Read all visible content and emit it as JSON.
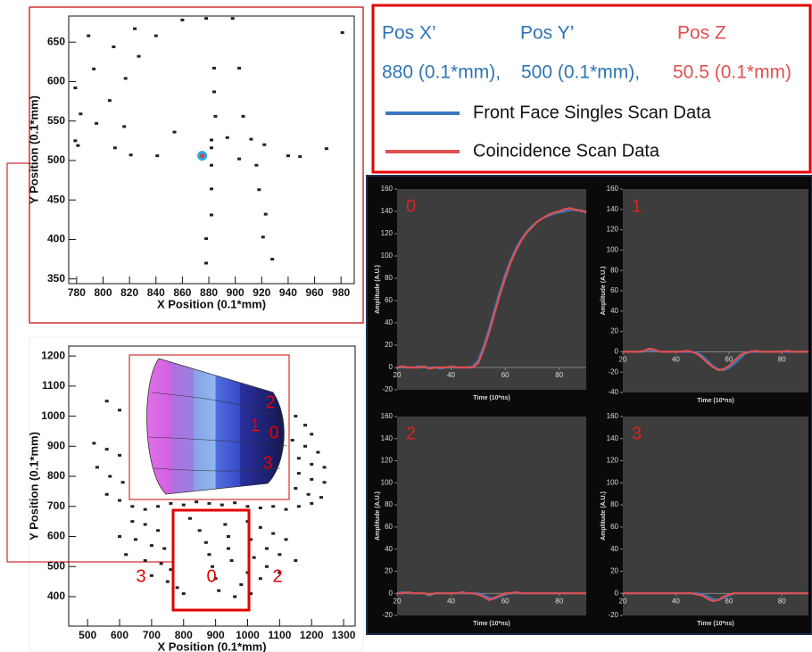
{
  "positions": [
    {
      "label": "Pos X’",
      "value": "880 (0.1*mm),",
      "color": "#2e74b5"
    },
    {
      "label": "Pos Y’",
      "value": "500 (0.1*mm),",
      "color": "#2e74b5"
    },
    {
      "label": "Pos Z",
      "value": "50.5 (0.1*mm)",
      "color": "#e05050"
    }
  ],
  "chart_data": [
    {
      "type": "scatter",
      "xlabel": "X Position (0.1*mm)",
      "ylabel": "Y Position (0.1*mm)",
      "xlim": [
        774,
        990
      ],
      "ylim": [
        344,
        683
      ],
      "xticks": [
        780,
        800,
        820,
        840,
        860,
        880,
        900,
        920,
        940,
        960,
        980
      ],
      "yticks": [
        350,
        400,
        450,
        500,
        550,
        600,
        650
      ],
      "series": [
        {
          "color": "#222222",
          "x": [
            789,
            824,
            840,
            860,
            878,
            898,
            981,
            808,
            827,
            793,
            817,
            779,
            884,
            903,
            805,
            884,
            783,
            795,
            816,
            885,
            906,
            854,
            779,
            809,
            841,
            882,
            894,
            912,
            922,
            781,
            882,
            821,
            882,
            903,
            916,
            940,
            969,
            949,
            882,
            918,
            882,
            923,
            878,
            921,
            878,
            928
          ],
          "y": [
            658,
            667,
            658,
            678,
            680,
            680,
            662,
            644,
            632,
            616,
            604,
            592,
            617,
            617,
            576,
            587,
            559,
            547,
            543,
            556,
            556,
            536,
            525,
            516,
            506,
            526,
            529,
            527,
            520,
            519,
            516,
            507,
            494,
            502,
            494,
            506,
            515,
            505,
            464,
            463,
            431,
            432,
            401,
            403,
            370,
            375
          ]
        },
        {
          "color": "#e03a3a",
          "ring": "#29a9e0",
          "x": [
            875
          ],
          "y": [
            506
          ]
        }
      ]
    },
    {
      "type": "scatter",
      "xlabel": "X Position (0.1*mm)",
      "ylabel": "Y Position (0.1*mm)",
      "xlim": [
        441,
        1336
      ],
      "ylim": [
        302,
        1233
      ],
      "xticks": [
        500,
        600,
        700,
        800,
        900,
        1000,
        1100,
        1200,
        1300
      ],
      "yticks": [
        400,
        500,
        600,
        700,
        800,
        900,
        1000,
        1100,
        1200
      ],
      "annotations": [
        {
          "text": "2",
          "color": "#e00000"
        },
        {
          "text": "1",
          "color": "#e00000"
        },
        {
          "text": "0",
          "color": "#e00000"
        },
        {
          "text": "3",
          "color": "#e00000"
        },
        {
          "text": "3",
          "color": "#e00000"
        },
        {
          "text": "0",
          "color": "#e00000"
        },
        {
          "text": "2",
          "color": "#e00000"
        }
      ],
      "series": [
        {
          "color": "#222222",
          "x": [
            560,
            600,
            520,
            560,
            600,
            530,
            570,
            610,
            560,
            600,
            640,
            680,
            720,
            760,
            800,
            840,
            880,
            920,
            960,
            1000,
            1040,
            1080,
            1120,
            1160,
            1200,
            1150,
            1180,
            1200,
            1140,
            1180,
            1220,
            1160,
            1200,
            1240,
            1160,
            1200,
            1240,
            1150,
            1190,
            1230,
            640,
            680,
            720,
            600,
            650,
            700,
            740,
            620,
            680,
            730,
            760,
            700,
            750,
            780,
            800,
            820,
            850,
            870,
            880,
            890,
            900,
            910,
            930,
            940,
            940,
            950,
            1000,
            1040,
            1080,
            1120,
            1010,
            1060,
            1100,
            1150,
            1020,
            1060,
            1100,
            1000,
            1040,
            980,
            960,
            1010
          ],
          "y": [
            1050,
            1020,
            910,
            890,
            870,
            830,
            800,
            780,
            740,
            720,
            700,
            690,
            700,
            710,
            705,
            715,
            710,
            705,
            712,
            700,
            695,
            700,
            690,
            700,
            710,
            1000,
            970,
            940,
            920,
            900,
            880,
            860,
            840,
            830,
            810,
            790,
            780,
            760,
            740,
            730,
            650,
            640,
            620,
            600,
            590,
            570,
            560,
            540,
            520,
            510,
            490,
            470,
            450,
            430,
            410,
            660,
            620,
            580,
            540,
            500,
            460,
            420,
            640,
            600,
            560,
            520,
            650,
            630,
            610,
            590,
            590,
            560,
            540,
            520,
            530,
            500,
            480,
            480,
            460,
            440,
            400,
            410
          ]
        }
      ]
    },
    {
      "type": "line",
      "label": "0",
      "label_color": "#e02020",
      "xlabel": "Time (10*ns)",
      "ylabel": "Amplitude (A.U.)",
      "xlim": [
        20,
        90
      ],
      "ylim": [
        -20,
        160
      ],
      "xticks": [
        20,
        40,
        60,
        80
      ],
      "yticks": [
        -20,
        0,
        20,
        40,
        60,
        80,
        100,
        120,
        140,
        160
      ],
      "x": [
        20,
        22,
        24,
        26,
        28,
        30,
        32,
        34,
        36,
        38,
        40,
        42,
        44,
        46,
        48,
        50,
        52,
        54,
        56,
        58,
        60,
        62,
        64,
        66,
        68,
        70,
        72,
        74,
        76,
        78,
        80,
        82,
        84,
        86,
        88,
        90
      ],
      "series": [
        {
          "name": "Front Face Singles Scan Data",
          "color": "#3a78c0",
          "values": [
            0,
            0,
            0,
            0,
            1,
            0,
            0,
            0,
            -1,
            0,
            0,
            0,
            0,
            0,
            1,
            6,
            19,
            34,
            51,
            68,
            83,
            96,
            107,
            115,
            122,
            127,
            131,
            134,
            136,
            138,
            139,
            140,
            141,
            142,
            140,
            140
          ]
        },
        {
          "name": "Coincidence Scan Data",
          "color": "#e05050",
          "values": [
            0,
            1,
            0,
            0,
            0,
            1,
            -1,
            0,
            0,
            0,
            1,
            0,
            0,
            0,
            0,
            4,
            16,
            31,
            48,
            65,
            80,
            94,
            105,
            114,
            121,
            126,
            131,
            134,
            137,
            139,
            140,
            142,
            143,
            141,
            141,
            139
          ]
        }
      ]
    },
    {
      "type": "line",
      "label": "1",
      "label_color": "#e02020",
      "xlabel": "Time (10*ns)",
      "ylabel": "Amplitude (A.U.)",
      "xlim": [
        20,
        90
      ],
      "ylim": [
        -40,
        160
      ],
      "xticks": [
        20,
        40,
        60,
        80
      ],
      "yticks": [
        -40,
        -20,
        0,
        20,
        40,
        60,
        80,
        100,
        120,
        140,
        160
      ],
      "x": [
        20,
        22,
        24,
        26,
        28,
        30,
        32,
        34,
        36,
        38,
        40,
        42,
        44,
        46,
        48,
        50,
        52,
        54,
        56,
        58,
        60,
        62,
        64,
        66,
        68,
        70,
        72,
        74,
        76,
        78,
        80,
        82,
        84,
        86,
        88,
        90
      ],
      "series": [
        {
          "color": "#3a78c0",
          "values": [
            0,
            0,
            0,
            0,
            0,
            2,
            1,
            0,
            0,
            0,
            0,
            0,
            0,
            0,
            -1,
            -4,
            -9,
            -14,
            -17,
            -18,
            -16,
            -12,
            -7,
            -2,
            0,
            0,
            0,
            0,
            0,
            0,
            0,
            0,
            0,
            0,
            0,
            0
          ]
        },
        {
          "color": "#e05050",
          "values": [
            0,
            0,
            0,
            0,
            1,
            3,
            2,
            0,
            0,
            0,
            0,
            0,
            1,
            0,
            -2,
            -6,
            -11,
            -15,
            -18,
            -17,
            -14,
            -9,
            -4,
            -1,
            0,
            1,
            0,
            0,
            0,
            0,
            0,
            1,
            0,
            0,
            0,
            0
          ]
        }
      ]
    },
    {
      "type": "line",
      "label": "2",
      "label_color": "#e02020",
      "xlabel": "Time (10*ns)",
      "ylabel": "Amplitude (A.U.)",
      "xlim": [
        20,
        90
      ],
      "ylim": [
        -20,
        160
      ],
      "xticks": [
        20,
        40,
        60,
        80
      ],
      "yticks": [
        -20,
        0,
        20,
        40,
        60,
        80,
        100,
        120,
        140,
        160
      ],
      "x": [
        20,
        22,
        24,
        26,
        28,
        30,
        32,
        34,
        36,
        38,
        40,
        42,
        44,
        46,
        48,
        50,
        52,
        54,
        56,
        58,
        60,
        62,
        64,
        66,
        68,
        70,
        72,
        74,
        76,
        78,
        80,
        82,
        84,
        86,
        88,
        90
      ],
      "series": [
        {
          "color": "#3a78c0",
          "values": [
            0,
            1,
            0,
            0,
            0,
            0,
            -2,
            0,
            0,
            0,
            0,
            0,
            0,
            0,
            0,
            0,
            -2,
            -4,
            -5,
            -3,
            -1,
            0,
            0,
            0,
            0,
            0,
            0,
            0,
            0,
            0,
            0,
            0,
            0,
            0,
            0,
            0
          ]
        },
        {
          "color": "#e05050",
          "values": [
            0,
            0,
            1,
            0,
            0,
            0,
            -1,
            0,
            0,
            0,
            0,
            0,
            1,
            0,
            0,
            -1,
            -3,
            -6,
            -4,
            -2,
            0,
            0,
            1,
            0,
            0,
            0,
            0,
            0,
            0,
            0,
            0,
            0,
            0,
            0,
            0,
            0
          ]
        }
      ]
    },
    {
      "type": "line",
      "label": "3",
      "label_color": "#e02020",
      "xlabel": "Time (10*ns)",
      "ylabel": "Amplitude (A.U.)",
      "xlim": [
        20,
        90
      ],
      "ylim": [
        -20,
        160
      ],
      "xticks": [
        20,
        40,
        60,
        80
      ],
      "yticks": [
        -20,
        0,
        20,
        40,
        60,
        80,
        100,
        120,
        140,
        160
      ],
      "x": [
        20,
        22,
        24,
        26,
        28,
        30,
        32,
        34,
        36,
        38,
        40,
        42,
        44,
        46,
        48,
        50,
        52,
        54,
        56,
        58,
        60,
        62,
        64,
        66,
        68,
        70,
        72,
        74,
        76,
        78,
        80,
        82,
        84,
        86,
        88,
        90
      ],
      "series": [
        {
          "color": "#3a78c0",
          "values": [
            0,
            0,
            0,
            0,
            0,
            0,
            0,
            0,
            0,
            0,
            0,
            0,
            0,
            0,
            0,
            -1,
            -3,
            -5,
            -6,
            -4,
            -2,
            0,
            0,
            0,
            0,
            0,
            0,
            0,
            0,
            0,
            0,
            0,
            0,
            0,
            0,
            0
          ]
        },
        {
          "color": "#e05050",
          "values": [
            0,
            0,
            0,
            0,
            0,
            0,
            0,
            0,
            0,
            0,
            0,
            0,
            0,
            0,
            -1,
            -2,
            -5,
            -7,
            -6,
            -3,
            -1,
            0,
            0,
            0,
            0,
            0,
            0,
            0,
            0,
            0,
            0,
            0,
            0,
            0,
            0,
            0
          ]
        }
      ]
    }
  ]
}
